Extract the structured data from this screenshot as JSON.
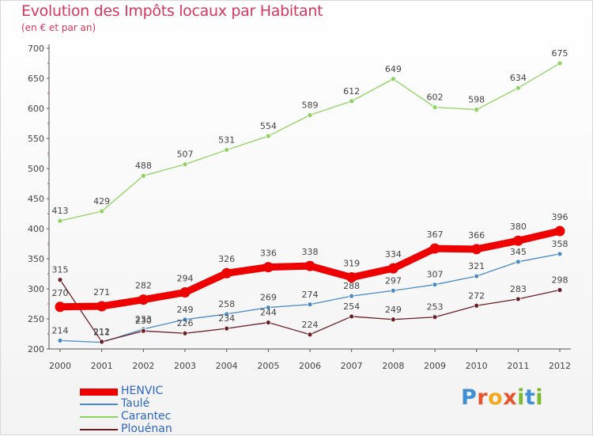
{
  "page": {
    "title": "Evolution des Impôts locaux par Habitant",
    "subtitle": "(en € et par an)",
    "brand_letters": [
      {
        "ch": "P",
        "color": "#3f8fd4"
      },
      {
        "ch": "r",
        "color": "#e9542e"
      },
      {
        "ch": "o",
        "color": "#f2a91e"
      },
      {
        "ch": "x",
        "color": "#e9542e"
      },
      {
        "ch": "i",
        "color": "#7cbb2f"
      },
      {
        "ch": "t",
        "color": "#3f8fd4"
      },
      {
        "ch": "i",
        "color": "#7cbb2f"
      }
    ]
  },
  "chart_data": {
    "type": "line",
    "title": "Evolution des Impôts locaux par Habitant",
    "subtitle": "(en € et par an)",
    "xlabel": "",
    "ylabel": "",
    "x": [
      "2000",
      "2001",
      "2002",
      "2003",
      "2004",
      "2005",
      "2006",
      "2007",
      "2008",
      "2009",
      "2010",
      "2011",
      "2012"
    ],
    "ylim": [
      200,
      700
    ],
    "yticks": [
      200,
      250,
      300,
      350,
      400,
      450,
      500,
      550,
      600,
      650,
      700
    ],
    "grid": false,
    "legend_position": "bottom-left",
    "series": [
      {
        "name": "HENVIC",
        "color": "#ee0000",
        "values": [
          270,
          271,
          282,
          294,
          326,
          336,
          338,
          319,
          334,
          367,
          366,
          380,
          396
        ]
      },
      {
        "name": "Taulé",
        "color": "#4a8ac4",
        "values": [
          214,
          211,
          233,
          249,
          258,
          269,
          274,
          288,
          297,
          307,
          321,
          345,
          358
        ]
      },
      {
        "name": "Carantec",
        "color": "#8dd35f",
        "values": [
          413,
          429,
          488,
          507,
          531,
          554,
          589,
          612,
          649,
          602,
          598,
          634,
          675
        ]
      },
      {
        "name": "Plouénan",
        "color": "#6b1f24",
        "values": [
          315,
          212,
          230,
          226,
          234,
          244,
          224,
          254,
          249,
          253,
          272,
          283,
          298
        ]
      }
    ]
  }
}
